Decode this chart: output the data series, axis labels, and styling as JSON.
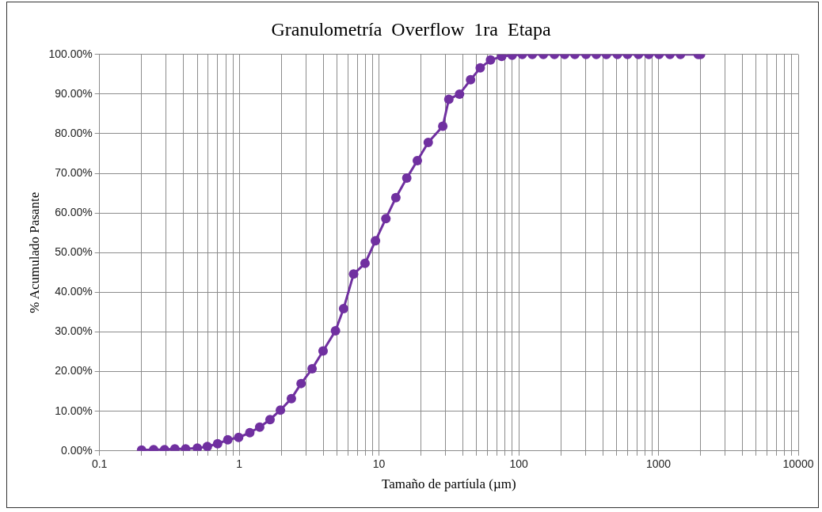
{
  "chart_data": {
    "type": "line",
    "title": "Granulometría  Overflow  1ra  Etapa",
    "xlabel": "Tamaño de partíula (µm)",
    "ylabel": "% Acumulado Pasante",
    "x": [
      0.2,
      0.244,
      0.292,
      0.346,
      0.413,
      0.501,
      0.591,
      0.7,
      0.828,
      0.99,
      1.19,
      1.4,
      1.66,
      1.97,
      2.36,
      2.77,
      3.32,
      3.98,
      4.88,
      5.58,
      6.58,
      7.94,
      9.43,
      11.2,
      13.2,
      15.8,
      18.8,
      22.5,
      28.6,
      31.6,
      37.7,
      45.2,
      53,
      62.8,
      75.5,
      89.7,
      106,
      125,
      150,
      180,
      213,
      252,
      303,
      359,
      424,
      508,
      600,
      719,
      853,
      1009,
      1208,
      1436,
      1923,
      2000
    ],
    "series": [
      {
        "color": "#7030a0",
        "values": [
          0.2,
          0.3,
          0.3,
          0.5,
          0.5,
          0.7,
          1.1,
          1.8,
          2.8,
          3.4,
          4.6,
          6.0,
          7.9,
          10.3,
          13.2,
          17.0,
          20.7,
          25.2,
          30.3,
          35.9,
          44.6,
          47.3,
          53.0,
          58.6,
          63.9,
          68.8,
          73.2,
          77.8,
          81.9,
          88.7,
          90.0,
          93.6,
          96.6,
          98.6,
          99.5,
          99.8,
          100,
          100,
          100,
          100,
          100,
          100,
          100,
          100,
          100,
          100,
          100,
          100,
          100,
          100,
          100,
          100,
          100,
          100
        ]
      }
    ],
    "log": "x",
    "xlim": [
      0.1,
      10000
    ],
    "xticks": [
      0.1,
      {
        "value": 0.2,
        "label": null
      },
      {
        "value": 0.3,
        "label": null
      },
      {
        "value": 0.4,
        "label": null
      },
      {
        "value": 0.5,
        "label": null
      },
      {
        "value": 0.6,
        "label": null
      },
      {
        "value": 0.7,
        "label": null
      },
      {
        "value": 0.8,
        "label": null
      },
      {
        "value": 0.9,
        "label": null
      },
      1,
      {
        "value": 2,
        "label": null
      },
      {
        "value": 3,
        "label": null
      },
      {
        "value": 4,
        "label": null
      },
      {
        "value": 5,
        "label": null
      },
      {
        "value": 6,
        "label": null
      },
      {
        "value": 7,
        "label": null
      },
      {
        "value": 8,
        "label": null
      },
      {
        "value": 9,
        "label": null
      },
      10,
      {
        "value": 20,
        "label": null
      },
      {
        "value": 30,
        "label": null
      },
      {
        "value": 40,
        "label": null
      },
      {
        "value": 50,
        "label": null
      },
      {
        "value": 60,
        "label": null
      },
      {
        "value": 70,
        "label": null
      },
      {
        "value": 80,
        "label": null
      },
      {
        "value": 90,
        "label": null
      },
      100,
      {
        "value": 200,
        "label": null
      },
      {
        "value": 300,
        "label": null
      },
      {
        "value": 400,
        "label": null
      },
      {
        "value": 500,
        "label": null
      },
      {
        "value": 600,
        "label": null
      },
      {
        "value": 700,
        "label": null
      },
      {
        "value": 800,
        "label": null
      },
      {
        "value": 900,
        "label": null
      },
      1000,
      {
        "value": 2000,
        "label": null
      },
      {
        "value": 3000,
        "label": null
      },
      {
        "value": 4000,
        "label": null
      },
      {
        "value": 5000,
        "label": null
      },
      {
        "value": 6000,
        "label": null
      },
      {
        "value": 7000,
        "label": null
      },
      {
        "value": 8000,
        "label": null
      },
      {
        "value": 9000,
        "label": null
      },
      10000
    ],
    "ylim": [
      0,
      100
    ],
    "yticks": [
      {
        "value": 0,
        "label": "0.00%"
      },
      {
        "value": 10,
        "label": "10.00%"
      },
      {
        "value": 20,
        "label": "20.00%"
      },
      {
        "value": 30,
        "label": "30.00%"
      },
      {
        "value": 40,
        "label": "40.00%"
      },
      {
        "value": 50,
        "label": "50.00%"
      },
      {
        "value": 60,
        "label": "60.00%"
      },
      {
        "value": 70,
        "label": "70.00%"
      },
      {
        "value": 80,
        "label": "80.00%"
      },
      {
        "value": 90,
        "label": "90.00%"
      },
      {
        "value": 100,
        "label": "100.00%"
      }
    ],
    "grid": true,
    "legend": false,
    "marker": "circle",
    "line_style": "solid"
  }
}
